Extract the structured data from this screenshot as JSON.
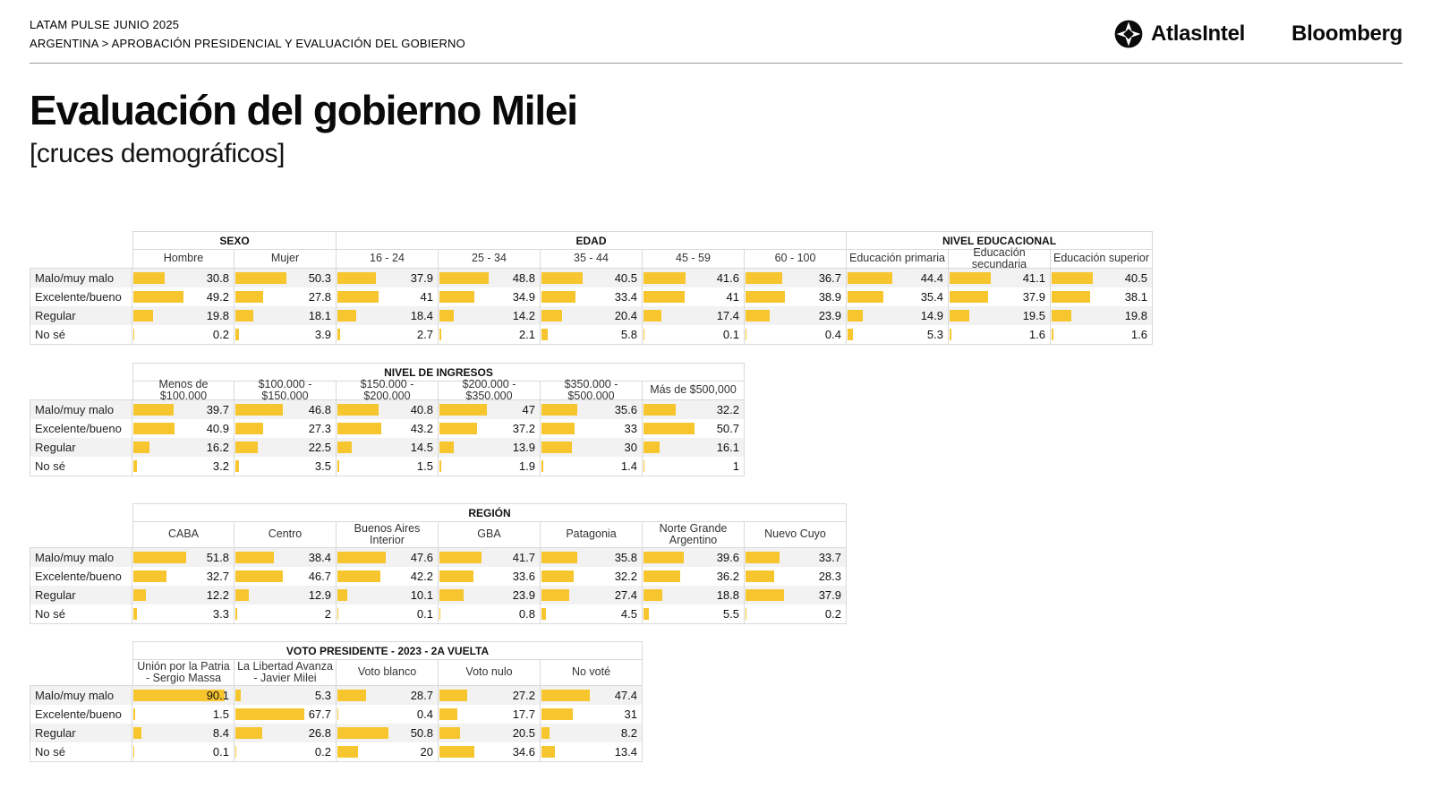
{
  "page": {
    "eyebrow_line1": "LATAM PULSE JUNIO 2025",
    "eyebrow_line2": "ARGENTINA > APROBACIÓN PRESIDENCIAL Y EVALUACIÓN DEL GOBIERNO",
    "title": "Evaluación del gobierno Milei",
    "subtitle": "[cruces demográficos]",
    "brand_atlasintel": "AtlasIntel",
    "brand_bloomberg": "Bloomberg"
  },
  "icons": {
    "atlasintel_mark": "four-point-compass-star-in-black-circle"
  },
  "colors": {
    "bar": "#F7C52E",
    "row_stripe": "#F2F2F2",
    "border": "#D9D9D9"
  },
  "chart_data": [
    {
      "type": "bar-table",
      "title": "SEXO / EDAD / NIVEL EDUCACIONAL",
      "value_range": [
        0,
        100
      ],
      "groups": [
        {
          "label": "SEXO",
          "span": 2
        },
        {
          "label": "EDAD",
          "span": 5
        },
        {
          "label": "NIVEL EDUCACIONAL",
          "span": 3
        }
      ],
      "row_labels": [
        "Malo/muy malo",
        "Excelente/bueno",
        "Regular",
        "No sé"
      ],
      "columns": [
        {
          "label": "Hombre",
          "values": [
            30.8,
            49.2,
            19.8,
            0.2
          ]
        },
        {
          "label": "Mujer",
          "values": [
            50.3,
            27.8,
            18.1,
            3.9
          ]
        },
        {
          "label": "16 - 24",
          "values": [
            37.9,
            41,
            18.4,
            2.7
          ]
        },
        {
          "label": "25 - 34",
          "values": [
            48.8,
            34.9,
            14.2,
            2.1
          ]
        },
        {
          "label": "35 - 44",
          "values": [
            40.5,
            33.4,
            20.4,
            5.8
          ]
        },
        {
          "label": "45 - 59",
          "values": [
            41.6,
            41,
            17.4,
            0.1
          ]
        },
        {
          "label": "60 - 100",
          "values": [
            36.7,
            38.9,
            23.9,
            0.4
          ]
        },
        {
          "label": "Educación primaria",
          "values": [
            44.4,
            35.4,
            14.9,
            5.3
          ]
        },
        {
          "label": "Educación secundaria",
          "values": [
            41.1,
            37.9,
            19.5,
            1.6
          ]
        },
        {
          "label": "Educación superior",
          "values": [
            40.5,
            38.1,
            19.8,
            1.6
          ]
        }
      ]
    },
    {
      "type": "bar-table",
      "title": "NIVEL DE INGRESOS",
      "value_range": [
        0,
        100
      ],
      "groups": [
        {
          "label": "NIVEL DE INGRESOS",
          "span": 6
        }
      ],
      "row_labels": [
        "Malo/muy malo",
        "Excelente/bueno",
        "Regular",
        "No sé"
      ],
      "columns": [
        {
          "label": "Menos de $100.000",
          "values": [
            39.7,
            40.9,
            16.2,
            3.2
          ]
        },
        {
          "label": "$100.000 - $150.000",
          "values": [
            46.8,
            27.3,
            22.5,
            3.5
          ]
        },
        {
          "label": "$150.000 - $200.000",
          "values": [
            40.8,
            43.2,
            14.5,
            1.5
          ]
        },
        {
          "label": "$200.000 - $350.000",
          "values": [
            47,
            37.2,
            13.9,
            1.9
          ]
        },
        {
          "label": "$350.000 - $500.000",
          "values": [
            35.6,
            33,
            30,
            1.4
          ]
        },
        {
          "label": "Más de $500,000",
          "values": [
            32.2,
            50.7,
            16.1,
            1
          ]
        }
      ]
    },
    {
      "type": "bar-table",
      "title": "REGIÓN",
      "value_range": [
        0,
        100
      ],
      "groups": [
        {
          "label": "REGIÓN",
          "span": 7
        }
      ],
      "row_labels": [
        "Malo/muy malo",
        "Excelente/bueno",
        "Regular",
        "No sé"
      ],
      "columns": [
        {
          "label": "CABA",
          "values": [
            51.8,
            32.7,
            12.2,
            3.3
          ]
        },
        {
          "label": "Centro",
          "values": [
            38.4,
            46.7,
            12.9,
            2
          ]
        },
        {
          "label": "Buenos Aires Interior",
          "values": [
            47.6,
            42.2,
            10.1,
            0.1
          ]
        },
        {
          "label": "GBA",
          "values": [
            41.7,
            33.6,
            23.9,
            0.8
          ]
        },
        {
          "label": "Patagonia",
          "values": [
            35.8,
            32.2,
            27.4,
            4.5
          ]
        },
        {
          "label": "Norte Grande Argentino",
          "values": [
            39.6,
            36.2,
            18.8,
            5.5
          ]
        },
        {
          "label": "Nuevo Cuyo",
          "values": [
            33.7,
            28.3,
            37.9,
            0.2
          ]
        }
      ]
    },
    {
      "type": "bar-table",
      "title": "VOTO PRESIDENTE - 2023 - 2A VUELTA",
      "value_range": [
        0,
        100
      ],
      "groups": [
        {
          "label": "VOTO PRESIDENTE - 2023 - 2A VUELTA",
          "span": 5
        }
      ],
      "row_labels": [
        "Malo/muy malo",
        "Excelente/bueno",
        "Regular",
        "No sé"
      ],
      "columns": [
        {
          "label": "Unión por la Patria - Sergio Massa",
          "values": [
            90.1,
            1.5,
            8.4,
            0.1
          ]
        },
        {
          "label": "La Libertad Avanza - Javier Milei",
          "values": [
            5.3,
            67.7,
            26.8,
            0.2
          ]
        },
        {
          "label": "Voto blanco",
          "values": [
            28.7,
            0.4,
            50.8,
            20
          ]
        },
        {
          "label": "Voto nulo",
          "values": [
            27.2,
            17.7,
            20.5,
            34.6
          ]
        },
        {
          "label": "No voté",
          "values": [
            47.4,
            31,
            8.2,
            13.4
          ]
        }
      ]
    }
  ]
}
